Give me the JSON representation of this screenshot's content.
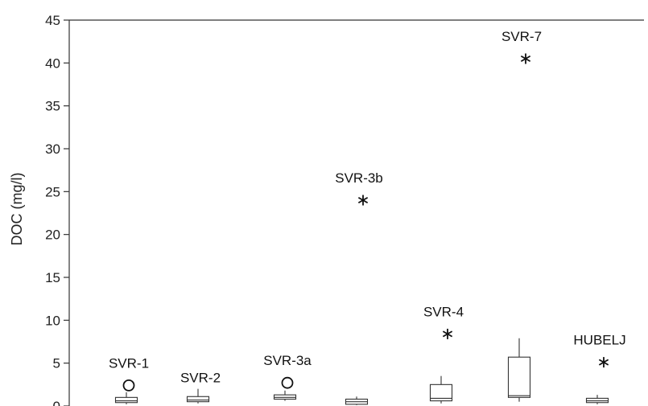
{
  "chart_data": {
    "type": "box",
    "title": "",
    "xlabel": "",
    "ylabel": "DOC (mg/l)",
    "ylim": [
      0,
      45
    ],
    "yticks": [
      0,
      5,
      10,
      15,
      20,
      25,
      30,
      35,
      40,
      45
    ],
    "grid": false,
    "series": [
      {
        "label": "SVR-1",
        "q1": 0.4,
        "median": 0.6,
        "q3": 1.0,
        "whisker_low": 0.2,
        "whisker_high": 1.6,
        "outlier_type": "circle",
        "outlier": 2.4
      },
      {
        "label": "SVR-2",
        "q1": 0.5,
        "median": 0.7,
        "q3": 1.1,
        "whisker_low": 0.3,
        "whisker_high": 2.0,
        "outlier_type": "",
        "outlier": null
      },
      {
        "label": "SVR-3a",
        "q1": 0.8,
        "median": 1.0,
        "q3": 1.3,
        "whisker_low": 0.6,
        "whisker_high": 1.8,
        "outlier_type": "circle",
        "outlier": 2.7
      },
      {
        "label": "SVR-3b",
        "q1": 0.2,
        "median": 0.5,
        "q3": 0.8,
        "whisker_low": 0.1,
        "whisker_high": 1.1,
        "outlier_type": "star",
        "outlier": 24.0
      },
      {
        "label": "SVR-4",
        "q1": 0.6,
        "median": 0.9,
        "q3": 2.5,
        "whisker_low": 0.3,
        "whisker_high": 3.5,
        "outlier_type": "star",
        "outlier": 8.4
      },
      {
        "label": "SVR-7",
        "q1": 1.0,
        "median": 1.2,
        "q3": 5.7,
        "whisker_low": 0.5,
        "whisker_high": 7.9,
        "outlier_type": "star",
        "outlier": 40.5
      },
      {
        "label": "HUBELJ",
        "q1": 0.4,
        "median": 0.6,
        "q3": 0.9,
        "whisker_low": 0.2,
        "whisker_high": 1.3,
        "outlier_type": "star",
        "outlier": 5.1
      }
    ]
  }
}
